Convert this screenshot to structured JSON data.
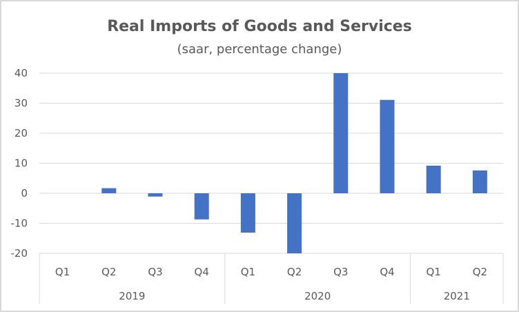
{
  "chart_data": {
    "type": "bar",
    "title": "Real Imports of Goods and Services",
    "subtitle": "(saar, percentage change)",
    "xlabel": "",
    "ylabel": "",
    "ylim": [
      -20,
      40
    ],
    "yticks": [
      40,
      30,
      20,
      10,
      0,
      -10,
      -20
    ],
    "grid": true,
    "legend": "none",
    "bar_color": "#4472c4",
    "categories": [
      "Q1",
      "Q2",
      "Q3",
      "Q4",
      "Q1",
      "Q2",
      "Q3",
      "Q4",
      "Q1",
      "Q2"
    ],
    "groups": [
      {
        "label": "2019",
        "count": 4
      },
      {
        "label": "2020",
        "count": 4
      },
      {
        "label": "2021",
        "count": 2
      }
    ],
    "series": [
      {
        "name": "Real Imports",
        "values": [
          0.0,
          1.7,
          -1.1,
          -8.7,
          -13.1,
          -20.0,
          40.0,
          31.1,
          9.2,
          7.6
        ]
      }
    ]
  }
}
